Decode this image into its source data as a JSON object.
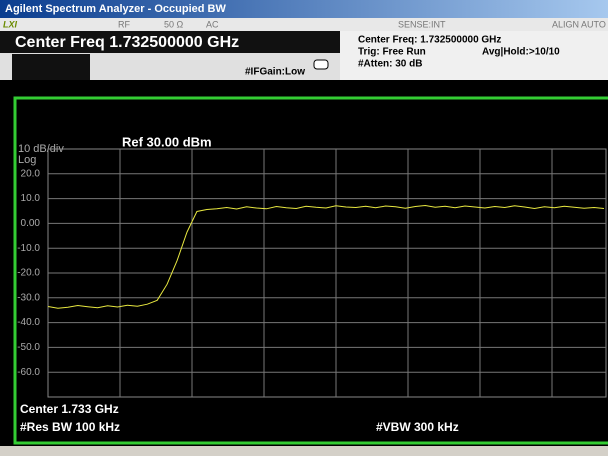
{
  "title_bar": "Agilent Spectrum Analyzer - Occupied BW",
  "status": {
    "logo": "LXI",
    "items": [
      "RF",
      "50 Ω",
      "AC",
      "SENSE:INT",
      "ALIGN AUTO"
    ]
  },
  "header": {
    "center_freq": "Center Freq 1.732500000 GHz",
    "if_gain": "#IFGain:Low",
    "info": [
      "Center Freq: 1.732500000 GHz",
      "Trig: Free Run",
      "#Atten: 30 dB"
    ],
    "avg_hold": "Avg|Hold:>10/10"
  },
  "chart_data": {
    "type": "line",
    "scale_label": "10 dB/div",
    "log_label": "Log",
    "ref_label": "Ref 30.00 dBm",
    "color": "#e8e840",
    "ylim": [
      -70,
      30
    ],
    "yticks": [
      {
        "value": 20,
        "label": "20.0"
      },
      {
        "value": 10,
        "label": "10.0"
      },
      {
        "value": 0,
        "label": "0.00"
      },
      {
        "value": -10,
        "label": "-10.0"
      },
      {
        "value": -20,
        "label": "-20.0"
      },
      {
        "value": -30,
        "label": "-30.0"
      },
      {
        "value": -40,
        "label": "-40.0"
      },
      {
        "value": -50,
        "label": "-50.0"
      },
      {
        "value": -60,
        "label": "-60.0"
      }
    ],
    "grid": true,
    "values": [
      -33.5,
      -34.2,
      -33.8,
      -33.1,
      -33.6,
      -34.0,
      -33.2,
      -33.7,
      -33.0,
      -33.4,
      -32.6,
      -31.0,
      -24.5,
      -15.0,
      -3.5,
      4.8,
      5.6,
      5.9,
      6.4,
      5.8,
      6.7,
      6.2,
      5.9,
      6.8,
      6.3,
      6.0,
      6.9,
      6.5,
      6.2,
      7.1,
      6.6,
      6.4,
      6.9,
      6.3,
      7.0,
      6.7,
      6.1,
      6.8,
      7.2,
      6.5,
      6.9,
      6.3,
      7.0,
      6.6,
      6.2,
      6.8,
      6.4,
      7.1,
      6.6,
      6.0,
      6.7,
      6.3,
      6.9,
      6.5,
      6.1,
      6.4,
      6.0
    ],
    "center_label": "Center 1.733 GHz",
    "rbw_label": "#Res BW 100 kHz",
    "vbw_label": "#VBW 300 kHz"
  }
}
